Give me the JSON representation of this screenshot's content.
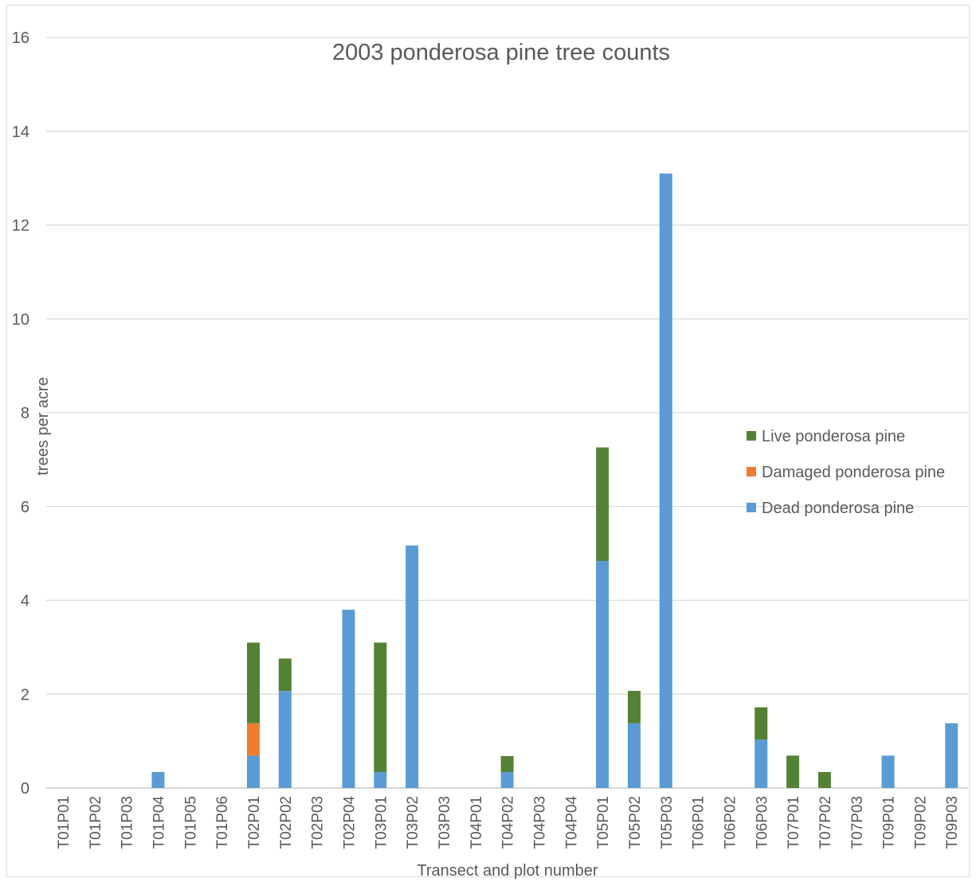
{
  "chart_data": {
    "type": "bar",
    "stacked": true,
    "title": "2003 ponderosa pine tree counts",
    "xlabel": "Transect and plot number",
    "ylabel": "trees per acre",
    "ylim": [
      0,
      16
    ],
    "yticks": [
      0,
      2,
      4,
      6,
      8,
      10,
      12,
      14,
      16
    ],
    "grid": true,
    "legend_position": "right",
    "categories": [
      "T01P01",
      "T01P02",
      "T01P03",
      "T01P04",
      "T01P05",
      "T01P06",
      "T02P01",
      "T02P02",
      "T02P03",
      "T02P04",
      "T03P01",
      "T03P02",
      "T03P03",
      "T04P01",
      "T04P02",
      "T04P03",
      "T04P04",
      "T05P01",
      "T05P02",
      "T05P03",
      "T06P01",
      "T06P02",
      "T06P03",
      "T07P01",
      "T07P02",
      "T07P03",
      "T09P01",
      "T09P02",
      "T09P03"
    ],
    "series": [
      {
        "name": "Dead ponderosa pine",
        "color": "#5b9bd5",
        "values": [
          0,
          0,
          0,
          0.34,
          0,
          0,
          0.69,
          2.07,
          0,
          3.8,
          0.34,
          5.17,
          0,
          0,
          0.34,
          0,
          0,
          4.84,
          1.38,
          13.1,
          0,
          0,
          1.03,
          0,
          0,
          0,
          0.69,
          0,
          1.38
        ]
      },
      {
        "name": "Damaged ponderosa pine",
        "color": "#ed7d31",
        "values": [
          0,
          0,
          0,
          0,
          0,
          0,
          0.69,
          0,
          0,
          0,
          0,
          0,
          0,
          0,
          0,
          0,
          0,
          0,
          0,
          0,
          0,
          0,
          0,
          0,
          0,
          0,
          0,
          0,
          0
        ]
      },
      {
        "name": "Live ponderosa pine",
        "color": "#548235",
        "values": [
          0,
          0,
          0,
          0,
          0,
          0,
          1.72,
          0.69,
          0,
          0,
          2.76,
          0,
          0,
          0,
          0.34,
          0,
          0,
          2.42,
          0.69,
          0,
          0,
          0,
          0.69,
          0.69,
          0.34,
          0,
          0,
          0,
          0
        ]
      }
    ],
    "legend_order": [
      "Live ponderosa pine",
      "Damaged ponderosa pine",
      "Dead ponderosa pine"
    ]
  }
}
